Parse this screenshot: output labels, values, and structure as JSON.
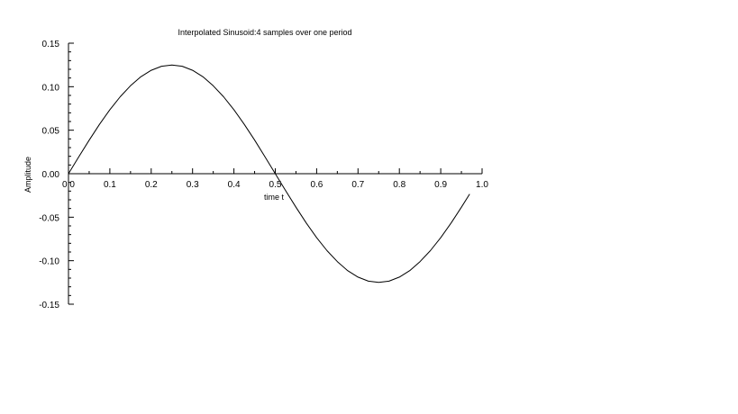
{
  "chart_data": {
    "type": "line",
    "title": "Interpolated Sinusoid:4 samples over one period",
    "xlabel": "time t",
    "ylabel": "Amplitude",
    "xlim": [
      0.0,
      1.0
    ],
    "ylim": [
      -0.15,
      0.15
    ],
    "grid": false,
    "x_ticks": [
      0.0,
      0.1,
      0.2,
      0.3,
      0.4,
      0.5,
      0.6,
      0.7,
      0.8,
      0.9,
      1.0
    ],
    "x_tick_labels": [
      "0.0",
      "0.1",
      "0.2",
      "0.3",
      "0.4",
      "0.5",
      "0.6",
      "0.7",
      "0.8",
      "0.9",
      "1.0"
    ],
    "y_ticks": [
      0.15,
      0.1,
      0.05,
      0.0,
      -0.05,
      -0.1,
      -0.15
    ],
    "y_tick_labels": [
      "0.15",
      "0.10",
      "0.05",
      "0.00",
      "-0.05",
      "-0.10",
      "-0.15"
    ],
    "series": [
      {
        "color": "#000000",
        "x": [
          0.0,
          0.025,
          0.05,
          0.075,
          0.1,
          0.125,
          0.15,
          0.175,
          0.2,
          0.225,
          0.25,
          0.275,
          0.3,
          0.325,
          0.35,
          0.375,
          0.4,
          0.425,
          0.45,
          0.475,
          0.5,
          0.525,
          0.55,
          0.575,
          0.6,
          0.625,
          0.65,
          0.675,
          0.7,
          0.725,
          0.75,
          0.775,
          0.8,
          0.825,
          0.85,
          0.875,
          0.9,
          0.925,
          0.95,
          0.97
        ],
        "y": [
          0.0,
          0.0196,
          0.0386,
          0.0567,
          0.0735,
          0.0884,
          0.1011,
          0.1114,
          0.1189,
          0.1235,
          0.125,
          0.1235,
          0.1189,
          0.1114,
          0.1011,
          0.0884,
          0.0735,
          0.0567,
          0.0386,
          0.0196,
          0.0,
          -0.0196,
          -0.0386,
          -0.0567,
          -0.0735,
          -0.0884,
          -0.1011,
          -0.1114,
          -0.1189,
          -0.1235,
          -0.125,
          -0.1235,
          -0.1189,
          -0.1114,
          -0.1011,
          -0.0884,
          -0.0735,
          -0.0567,
          -0.0386,
          -0.0234
        ]
      }
    ]
  }
}
